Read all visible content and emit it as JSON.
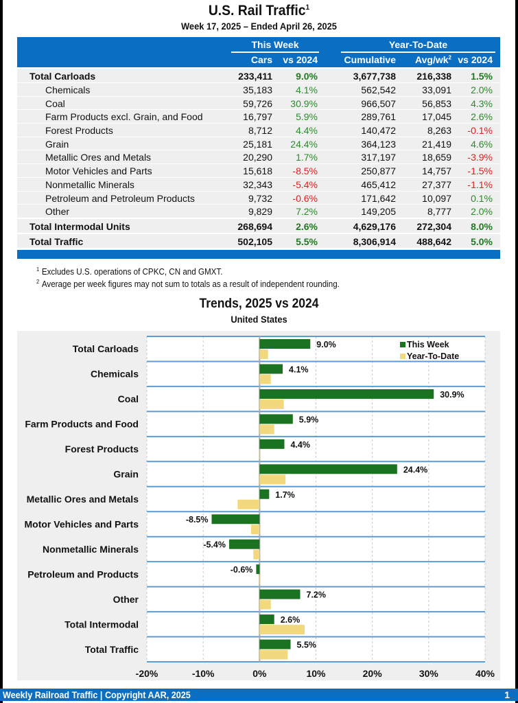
{
  "header": {
    "title": "U.S. Rail Traffic",
    "title_footnote": "1",
    "subtitle": "Week 17, 2025 – Ended April 26, 2025"
  },
  "table": {
    "group_headers": {
      "this_week": "This Week",
      "ytd": "Year-To-Date"
    },
    "columns": [
      "Cars",
      "vs 2024",
      "Cumulative",
      "Avg/wk",
      "vs 2024"
    ],
    "avg_footnote": "2",
    "rows": [
      {
        "label": "Total Carloads",
        "bold": true,
        "cars": "233,411",
        "week_vs": "9.0%",
        "cumulative": "3,677,738",
        "avg_wk": "216,338",
        "ytd_vs": "1.5%"
      },
      {
        "label": "Chemicals",
        "bold": false,
        "cars": "35,183",
        "week_vs": "4.1%",
        "cumulative": "562,542",
        "avg_wk": "33,091",
        "ytd_vs": "2.0%"
      },
      {
        "label": "Coal",
        "bold": false,
        "cars": "59,726",
        "week_vs": "30.9%",
        "cumulative": "966,507",
        "avg_wk": "56,853",
        "ytd_vs": "4.3%"
      },
      {
        "label": "Farm Products excl. Grain, and Food",
        "bold": false,
        "cars": "16,797",
        "week_vs": "5.9%",
        "cumulative": "289,761",
        "avg_wk": "17,045",
        "ytd_vs": "2.6%"
      },
      {
        "label": "Forest Products",
        "bold": false,
        "cars": "8,712",
        "week_vs": "4.4%",
        "cumulative": "140,472",
        "avg_wk": "8,263",
        "ytd_vs": "-0.1%"
      },
      {
        "label": "Grain",
        "bold": false,
        "cars": "25,181",
        "week_vs": "24.4%",
        "cumulative": "364,123",
        "avg_wk": "21,419",
        "ytd_vs": "4.6%"
      },
      {
        "label": "Metallic Ores and Metals",
        "bold": false,
        "cars": "20,290",
        "week_vs": "1.7%",
        "cumulative": "317,197",
        "avg_wk": "18,659",
        "ytd_vs": "-3.9%"
      },
      {
        "label": "Motor Vehicles and Parts",
        "bold": false,
        "cars": "15,618",
        "week_vs": "-8.5%",
        "cumulative": "250,877",
        "avg_wk": "14,757",
        "ytd_vs": "-1.5%"
      },
      {
        "label": "Nonmetallic Minerals",
        "bold": false,
        "cars": "32,343",
        "week_vs": "-5.4%",
        "cumulative": "465,412",
        "avg_wk": "27,377",
        "ytd_vs": "-1.1%"
      },
      {
        "label": "Petroleum and Petroleum Products",
        "bold": false,
        "cars": "9,732",
        "week_vs": "-0.6%",
        "cumulative": "171,642",
        "avg_wk": "10,097",
        "ytd_vs": "0.1%"
      },
      {
        "label": "Other",
        "bold": false,
        "cars": "9,829",
        "week_vs": "7.2%",
        "cumulative": "149,205",
        "avg_wk": "8,777",
        "ytd_vs": "2.0%"
      },
      {
        "label": "Total Intermodal Units",
        "bold": true,
        "cars": "268,694",
        "week_vs": "2.6%",
        "cumulative": "4,629,176",
        "avg_wk": "272,304",
        "ytd_vs": "8.0%"
      },
      {
        "label": "Total Traffic",
        "bold": true,
        "cars": "502,105",
        "week_vs": "5.5%",
        "cumulative": "8,306,914",
        "avg_wk": "488,642",
        "ytd_vs": "5.0%"
      }
    ]
  },
  "footnotes": [
    {
      "mark": "1",
      "text": "Excludes U.S. operations of CPKC, CN and GMXT."
    },
    {
      "mark": "2",
      "text": "Average per week figures may not sum to totals as a result of independent rounding."
    }
  ],
  "colors": {
    "brand_blue": "#0a6fc2",
    "positive": "#2b8a2b",
    "negative": "#e02020",
    "this_week_bar": "#1a7320",
    "ytd_bar": "#f2d97e",
    "row_separator": "#5b9bd5"
  },
  "chart_data": {
    "type": "bar",
    "orientation": "horizontal",
    "title": "Trends, 2025 vs 2024",
    "subtitle": "United States",
    "categories": [
      "Total Carloads",
      "Chemicals",
      "Coal",
      "Farm Products and Food",
      "Forest Products",
      "Grain",
      "Metallic Ores and Metals",
      "Motor Vehicles and Parts",
      "Nonmetallic Minerals",
      "Petroleum and Products",
      "Other",
      "Total Intermodal",
      "Total Traffic"
    ],
    "series": [
      {
        "name": "This Week",
        "values": [
          9.0,
          4.1,
          30.9,
          5.9,
          4.4,
          24.4,
          1.7,
          -8.5,
          -5.4,
          -0.6,
          7.2,
          2.6,
          5.5
        ]
      },
      {
        "name": "Year-To-Date",
        "values": [
          1.5,
          2.0,
          4.3,
          2.6,
          -0.1,
          4.6,
          -3.9,
          -1.5,
          -1.1,
          0.1,
          2.0,
          8.0,
          5.0
        ]
      }
    ],
    "data_labels": [
      "9.0%",
      "4.1%",
      "30.9%",
      "5.9%",
      "4.4%",
      "24.4%",
      "1.7%",
      "-8.5%",
      "-5.4%",
      "-0.6%",
      "7.2%",
      "2.6%",
      "5.5%"
    ],
    "xlim": [
      -20,
      40
    ],
    "xticks": [
      -20,
      -10,
      0,
      10,
      20,
      30,
      40
    ],
    "xtick_labels": [
      "-20%",
      "-10%",
      "0%",
      "10%",
      "20%",
      "30%",
      "40%"
    ],
    "xlabel": "",
    "ylabel": "",
    "grid": "vertical dashed",
    "legend": [
      "This Week",
      "Year-To-Date"
    ],
    "legend_position": "top-right"
  },
  "footer": {
    "text": "Weekly Railroad Traffic | Copyright AAR, 2025",
    "page_number": "1"
  }
}
